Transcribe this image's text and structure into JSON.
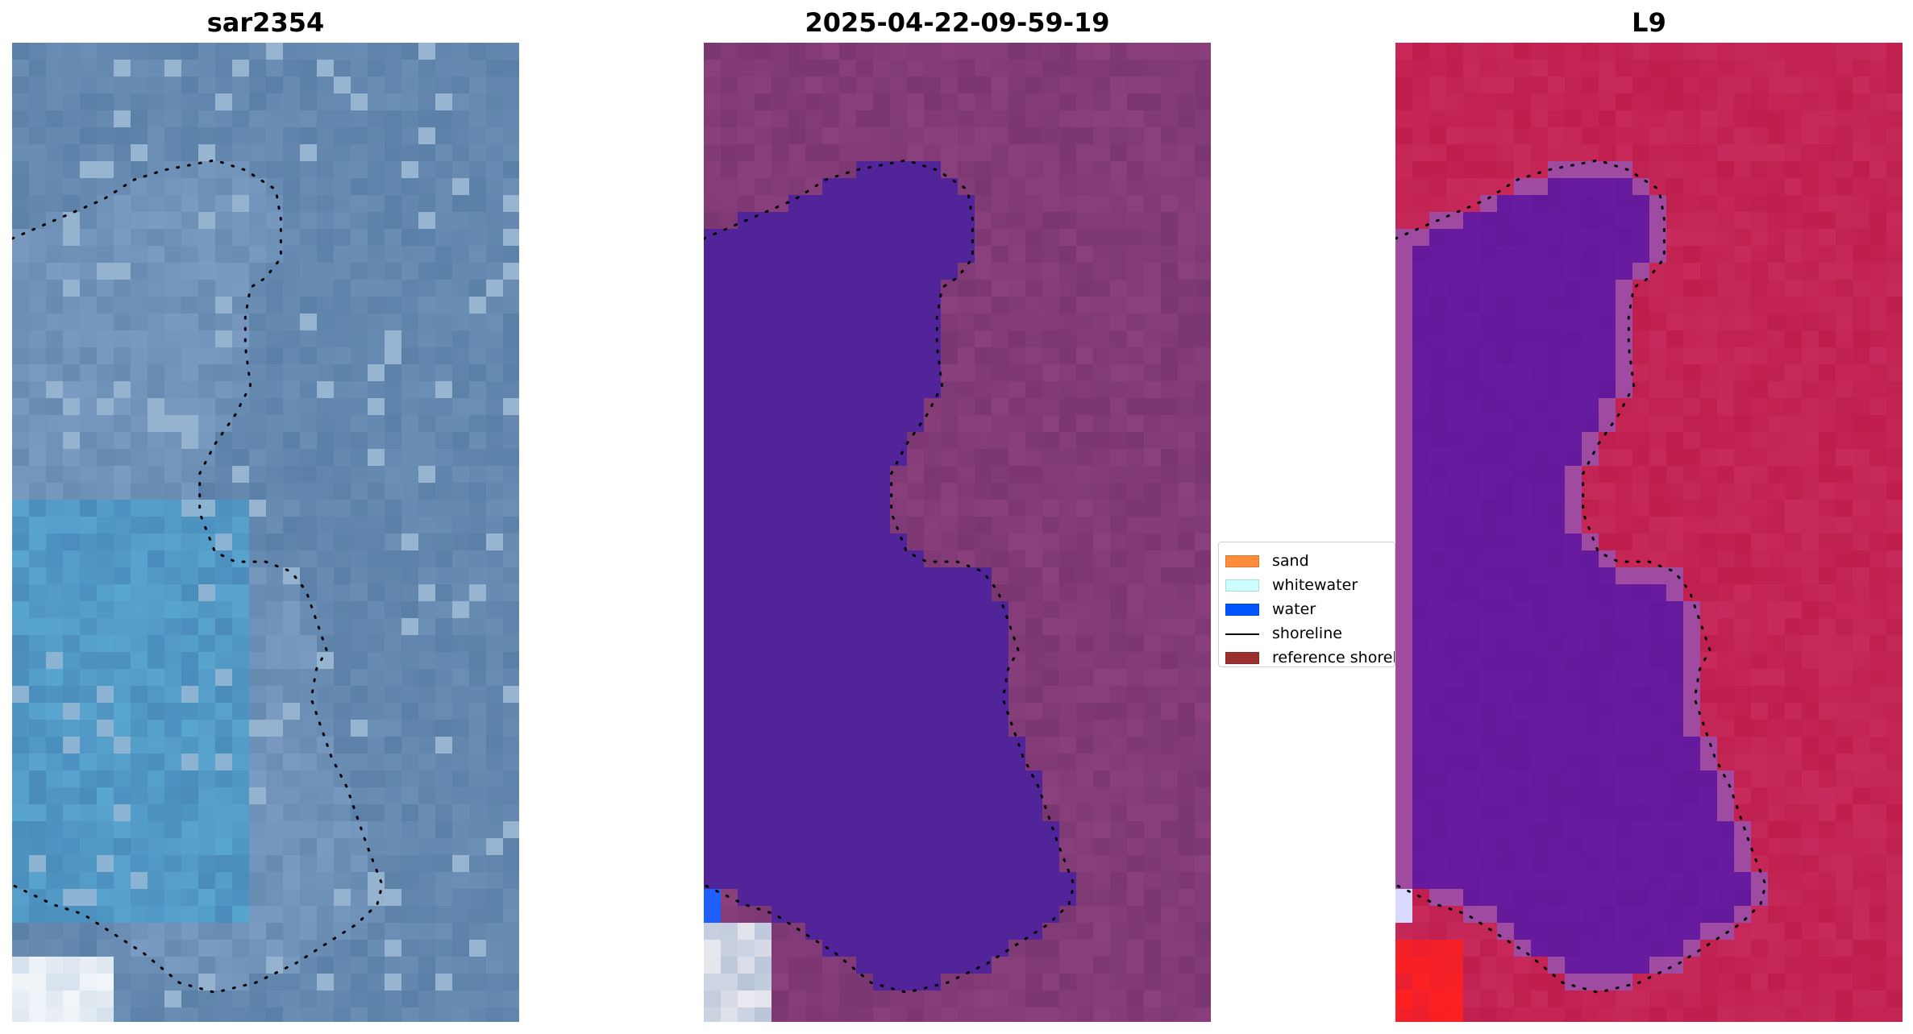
{
  "panels": [
    {
      "title": "sar2354",
      "palette": {
        "a": "#5b80a7",
        "b": "#7b9cc2",
        "c": "#a9c4dc",
        "d": "#58a5cf",
        "e": "#3e79ab",
        "f": "#f2f5f8"
      },
      "shoreline_color": "#000000"
    },
    {
      "title": "2025-04-22-09-59-19",
      "palette": {
        "land": "#7a3671",
        "land_light": "#9a4a87",
        "water": "#52249a",
        "water_edge": "#1f5fff",
        "bright": "#f1eef2"
      },
      "shoreline_color": "#000000"
    },
    {
      "title": "L9",
      "palette": {
        "land": "#bf1e4c",
        "land_light": "#d0386d",
        "water": "#64199b",
        "transition": "#9f4ba1",
        "red_spot": "#ff2020",
        "white": "#d9d9ff"
      },
      "shoreline_color": "#000000"
    }
  ],
  "legend": {
    "items": [
      {
        "label": "sand",
        "color": "#ff8c3a",
        "kind": "patch"
      },
      {
        "label": "whitewater",
        "color": "#ccffff",
        "kind": "patch"
      },
      {
        "label": "water",
        "color": "#0055ff",
        "kind": "patch"
      },
      {
        "label": "shoreline",
        "color": "#000000",
        "kind": "line"
      },
      {
        "label": "reference shoreline",
        "color": "#9b3030",
        "kind": "patch"
      }
    ]
  }
}
